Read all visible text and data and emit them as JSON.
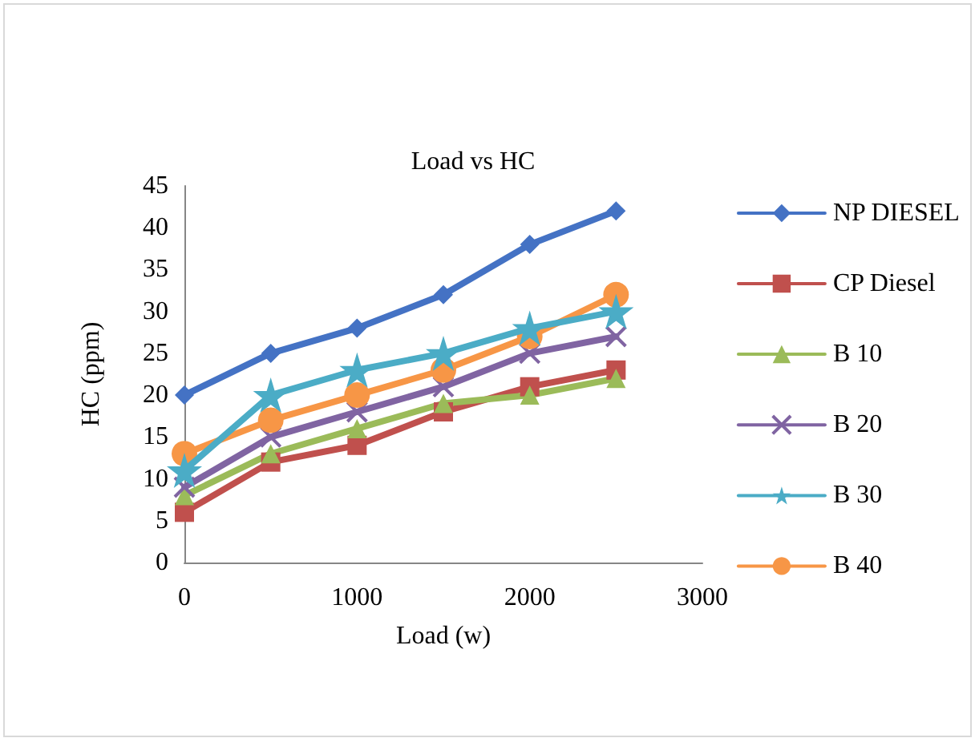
{
  "chart_data": {
    "type": "line",
    "title": "Load vs HC",
    "xlabel": "Load (w)",
    "ylabel": "HC (ppm)",
    "x": [
      0,
      500,
      1000,
      1500,
      2000,
      2500
    ],
    "xlim": [
      0,
      3000
    ],
    "xticks": [
      0,
      1000,
      2000,
      3000
    ],
    "ylim": [
      0,
      45
    ],
    "yticks": [
      0,
      5,
      10,
      15,
      20,
      25,
      30,
      35,
      40,
      45
    ],
    "grid": false,
    "legend": "right",
    "series": [
      {
        "name": "NP DIESEL",
        "color": "#4472c4",
        "marker": "diamond",
        "values": [
          20,
          25,
          28,
          32,
          38,
          42
        ]
      },
      {
        "name": "CP Diesel",
        "color": "#c0504d",
        "marker": "square",
        "values": [
          6,
          12,
          14,
          18,
          21,
          23
        ]
      },
      {
        "name": "B 10",
        "color": "#9bbb59",
        "marker": "triangle",
        "values": [
          8,
          13,
          16,
          19,
          20,
          22
        ]
      },
      {
        "name": "B 20",
        "color": "#8064a2",
        "marker": "cross",
        "values": [
          9,
          15,
          18,
          21,
          25,
          27
        ]
      },
      {
        "name": "B 30",
        "color": "#4bacc6",
        "marker": "star",
        "values": [
          11,
          20,
          23,
          25,
          28,
          30
        ]
      },
      {
        "name": "B 40",
        "color": "#f79646",
        "marker": "circle",
        "values": [
          13,
          17,
          20,
          23,
          27,
          32
        ]
      }
    ]
  }
}
